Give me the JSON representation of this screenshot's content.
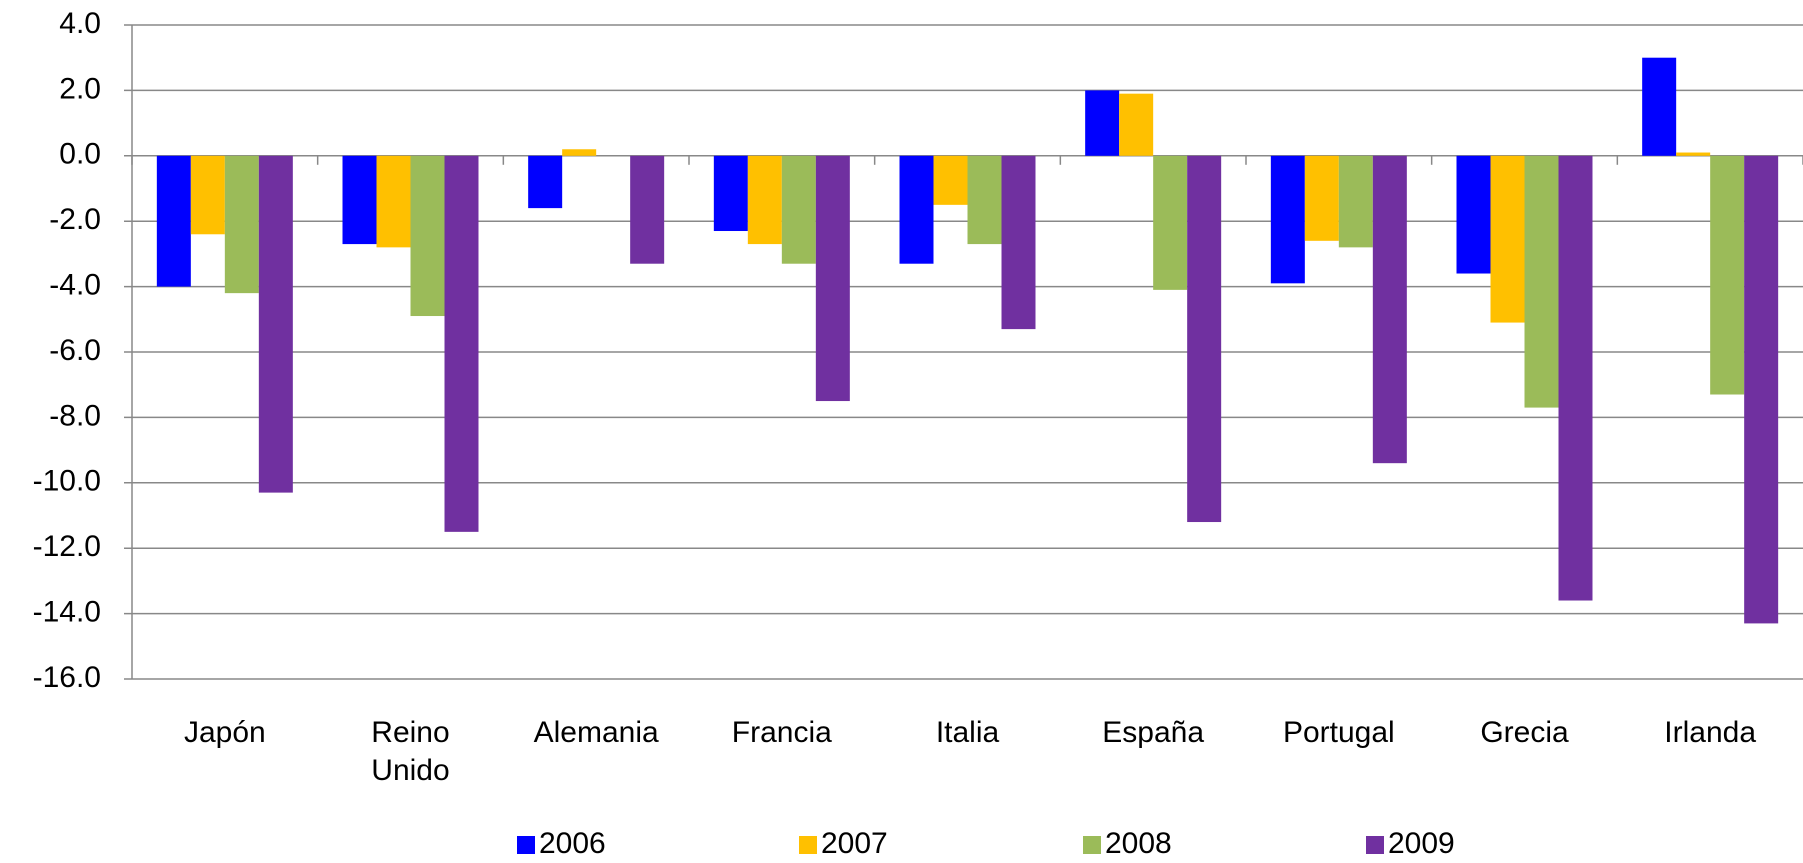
{
  "chart_data": {
    "type": "bar",
    "categories": [
      "Japón",
      "Reino Unido",
      "Alemania",
      "Francia",
      "Italia",
      "España",
      "Portugal",
      "Grecia",
      "Irlanda"
    ],
    "series": [
      {
        "name": "2006",
        "color": "#0000ff",
        "values": [
          -4.0,
          -2.7,
          -1.6,
          -2.3,
          -3.3,
          2.0,
          -3.9,
          -3.6,
          3.0
        ]
      },
      {
        "name": "2007",
        "color": "#ffc000",
        "values": [
          -2.4,
          -2.8,
          0.2,
          -2.7,
          -1.5,
          1.9,
          -2.6,
          -5.1,
          0.1
        ]
      },
      {
        "name": "2008",
        "color": "#9bbb59",
        "values": [
          -4.2,
          -4.9,
          0.0,
          -3.3,
          -2.7,
          -4.1,
          -2.8,
          -7.7,
          -7.3
        ]
      },
      {
        "name": "2009",
        "color": "#7030a0",
        "values": [
          -10.3,
          -11.5,
          -3.3,
          -7.5,
          -5.3,
          -11.2,
          -9.4,
          -13.6,
          -14.3
        ]
      }
    ],
    "ylim": [
      -16,
      4
    ],
    "yticks": [
      {
        "value": -16,
        "label": "-16.0"
      },
      {
        "value": -14,
        "label": "-14.0"
      },
      {
        "value": -12,
        "label": "-12.0"
      },
      {
        "value": -10,
        "label": "-10.0"
      },
      {
        "value": -8,
        "label": "-8.0"
      },
      {
        "value": -6,
        "label": "-6.0"
      },
      {
        "value": -4,
        "label": "-4.0"
      },
      {
        "value": -2,
        "label": "-2.0"
      },
      {
        "value": 0,
        "label": "0.0"
      },
      {
        "value": 2,
        "label": "2.0"
      },
      {
        "value": 4,
        "label": "4.0"
      }
    ],
    "grid": true,
    "legend": "bottom"
  }
}
